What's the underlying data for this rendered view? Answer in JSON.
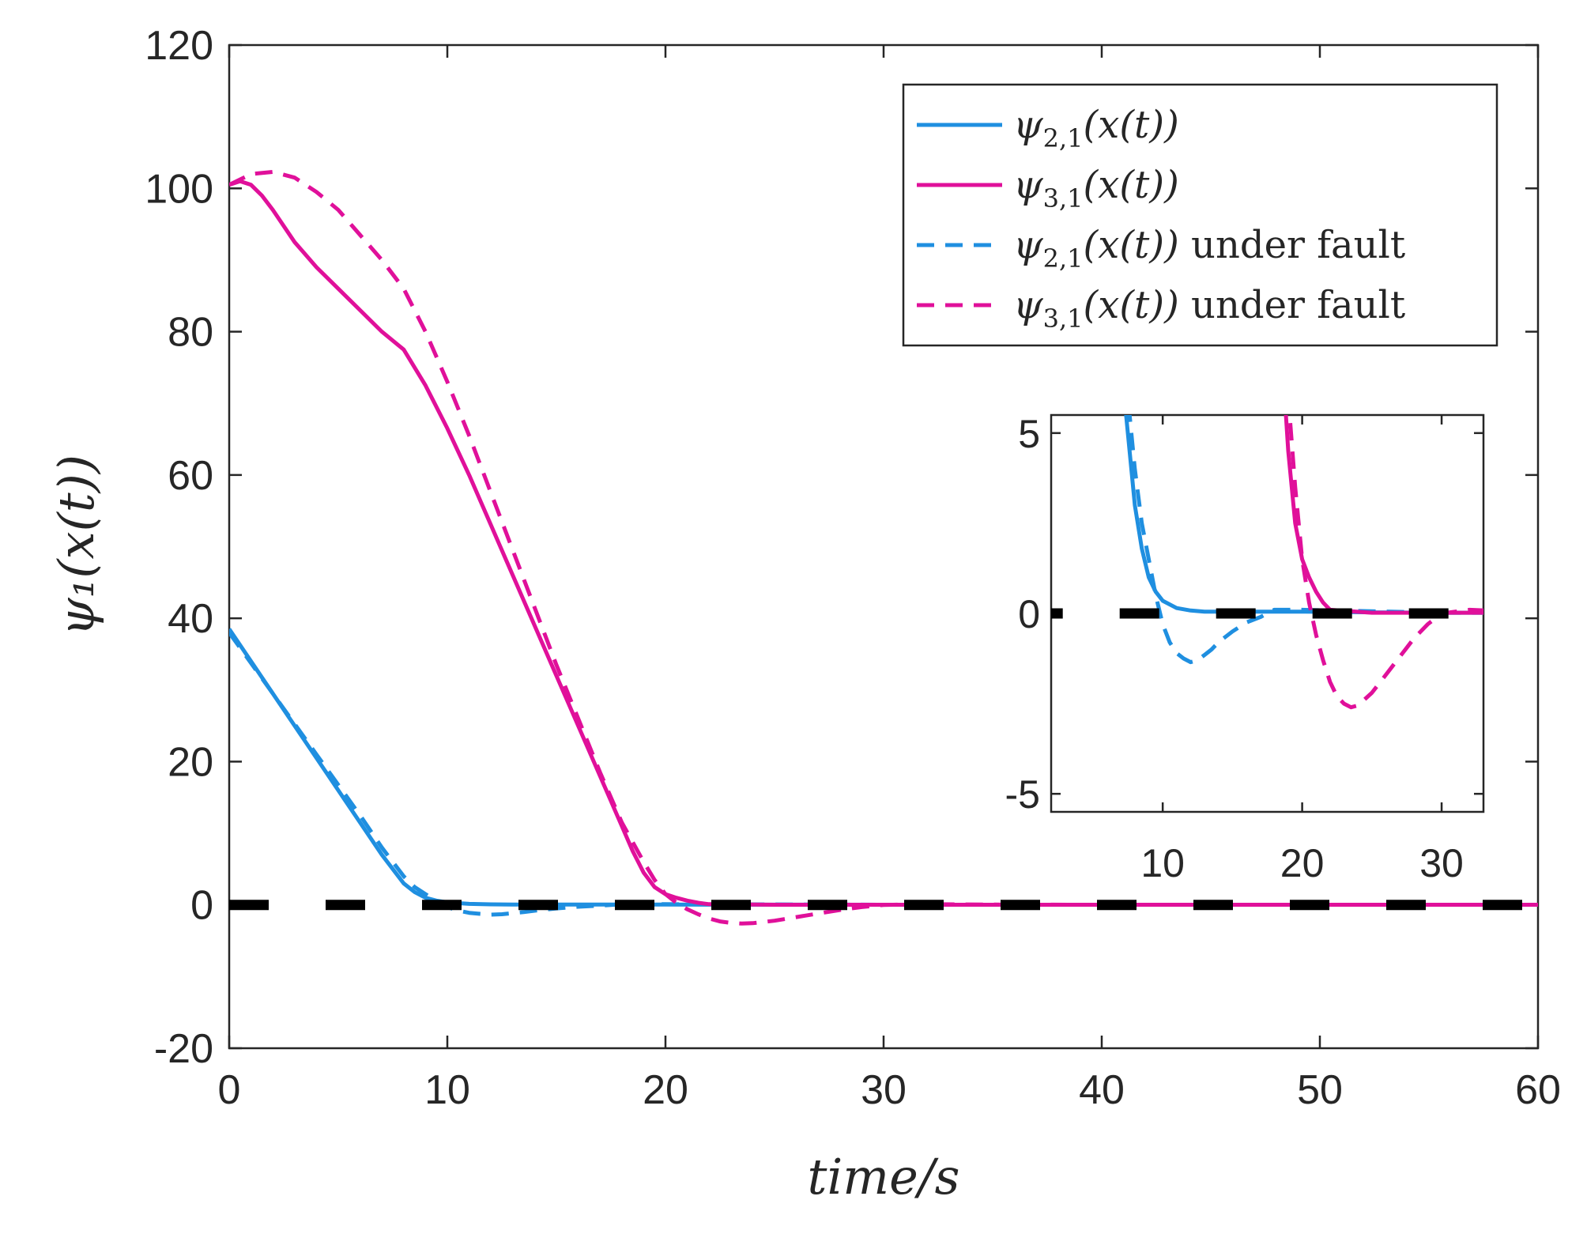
{
  "chart_data": {
    "type": "line",
    "xlabel": "time/s",
    "ylabel": "ψ₁(x(t))",
    "xlim": [
      0,
      60
    ],
    "ylim": [
      -20,
      120
    ],
    "xticks": [
      "0",
      "10",
      "20",
      "30",
      "40",
      "50",
      "60"
    ],
    "yticks": [
      "-20",
      "0",
      "20",
      "40",
      "60",
      "80",
      "100",
      "120"
    ],
    "legend_position": "top-right",
    "colors": {
      "psi21": "#1f8fe0",
      "psi31": "#e0109a",
      "reference": "#000000",
      "axis": "#262626"
    },
    "series": [
      {
        "id": "psi21",
        "name": "ψ₂,₁(x(t))",
        "legend_main": "ψ",
        "legend_sub": "2,1",
        "legend_args": "(x(t))",
        "legend_suffix": "",
        "style": "solid",
        "x": [
          0,
          2,
          4,
          6,
          7,
          8,
          8.5,
          9,
          9.5,
          10,
          11,
          12,
          13,
          14,
          15,
          16,
          17,
          18,
          20,
          25,
          30,
          40,
          50,
          60
        ],
        "y": [
          38.5,
          29.5,
          20.5,
          11.5,
          7,
          3,
          1.8,
          1,
          0.6,
          0.35,
          0.15,
          0.08,
          0.05,
          0.05,
          0.05,
          0.05,
          0.05,
          0.05,
          0.05,
          0.03,
          0.02,
          0.02,
          0.02,
          0.02
        ]
      },
      {
        "id": "psi31",
        "name": "ψ₃,₁(x(t))",
        "legend_main": "ψ",
        "legend_sub": "3,1",
        "legend_args": "(x(t))",
        "legend_suffix": "",
        "style": "solid",
        "x": [
          0,
          0.5,
          1,
          1.5,
          2,
          3,
          4,
          5,
          6,
          7,
          8,
          9,
          10,
          11,
          12,
          13,
          14,
          15,
          16,
          17,
          17.5,
          18,
          18.5,
          19,
          19.5,
          20,
          20.5,
          21,
          21.5,
          22,
          25,
          30,
          40,
          50,
          60
        ],
        "y": [
          100.5,
          101,
          100.5,
          99,
          97,
          92.5,
          89,
          86,
          83,
          80,
          77.5,
          72.5,
          66.5,
          60,
          53,
          46,
          39,
          32,
          25,
          18,
          14.5,
          11,
          7.5,
          4.5,
          2.5,
          1.5,
          1,
          0.6,
          0.3,
          0.1,
          0.02,
          0.02,
          0.02,
          0.02,
          0.02
        ]
      },
      {
        "id": "psi21_fault",
        "name": "ψ₂,₁(x(t)) under fault",
        "legend_main": "ψ",
        "legend_sub": "2,1",
        "legend_args": "(x(t))",
        "legend_suffix": "under fault",
        "style": "dashed",
        "x": [
          0,
          2,
          4,
          6,
          7,
          8,
          8.5,
          9,
          9.5,
          10,
          10.5,
          11,
          11.5,
          12,
          12.5,
          13,
          13.5,
          14,
          15,
          16,
          17,
          17.5,
          18,
          20,
          30,
          40,
          50,
          60
        ],
        "y": [
          38,
          29.5,
          21,
          12.5,
          8,
          4,
          2.5,
          1.5,
          0.5,
          -0.3,
          -0.8,
          -1.1,
          -1.25,
          -1.35,
          -1.3,
          -1.15,
          -1,
          -0.8,
          -0.5,
          -0.25,
          -0.1,
          0,
          0.1,
          0.1,
          0.02,
          0.02,
          0.02,
          0.02
        ]
      },
      {
        "id": "psi31_fault",
        "name": "ψ₃,₁(x(t)) under fault",
        "legend_main": "ψ",
        "legend_sub": "3,1",
        "legend_args": "(x(t))",
        "legend_suffix": "under fault",
        "style": "dashed",
        "x": [
          0,
          1,
          2,
          3,
          4,
          5,
          6,
          7,
          8,
          9,
          10,
          11,
          12,
          13,
          14,
          15,
          16,
          17,
          18,
          19,
          19.5,
          20,
          20.5,
          21,
          21.5,
          22,
          22.5,
          23,
          23.5,
          24,
          25,
          26,
          27,
          28,
          29,
          30,
          32,
          35,
          40,
          50,
          60
        ],
        "y": [
          100.5,
          102,
          102.3,
          101.5,
          99.5,
          97,
          93.5,
          90,
          86,
          80,
          73,
          65.5,
          57.5,
          49.5,
          41.5,
          33.5,
          26,
          18.5,
          11.5,
          6,
          3.5,
          1.5,
          0.3,
          -0.6,
          -1.3,
          -1.9,
          -2.3,
          -2.5,
          -2.6,
          -2.55,
          -2.2,
          -1.7,
          -1.2,
          -0.7,
          -0.3,
          0,
          0.1,
          0.05,
          0.02,
          0.02,
          0.02
        ]
      },
      {
        "id": "reference",
        "name": "zero reference",
        "style": "thick-dashed",
        "x": [
          0,
          60
        ],
        "y": [
          0,
          0
        ]
      }
    ],
    "inset": {
      "xlim": [
        2,
        33
      ],
      "ylim": [
        -5.5,
        5.5
      ],
      "xticks": [
        "10",
        "20",
        "30"
      ],
      "yticks": [
        "-5",
        "0",
        "5"
      ]
    }
  }
}
